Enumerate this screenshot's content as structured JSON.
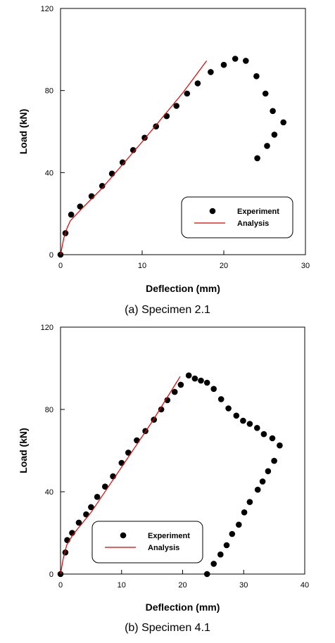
{
  "chart_data": [
    {
      "type": "scatter",
      "caption": "(a)  Specimen  2.1",
      "xlabel": "Deflection (mm)",
      "ylabel": "Load (kN)",
      "xlim": [
        0,
        30
      ],
      "ylim": [
        0,
        120
      ],
      "xticks": [
        "0",
        "10",
        "20",
        "30"
      ],
      "yticks": [
        "0",
        "40",
        "80",
        "120"
      ],
      "grid": false,
      "legend_position": "bottom-right",
      "series": [
        {
          "name": "Experiment",
          "kind": "markers",
          "color": "#000000",
          "points": [
            [
              0,
              0
            ],
            [
              0.6,
              10.5
            ],
            [
              1.3,
              19.5
            ],
            [
              2.4,
              23.5
            ],
            [
              3.8,
              28.5
            ],
            [
              5.1,
              33.5
            ],
            [
              6.3,
              39.5
            ],
            [
              7.6,
              45
            ],
            [
              8.9,
              51
            ],
            [
              10.3,
              57
            ],
            [
              11.7,
              62.5
            ],
            [
              13.0,
              67.5
            ],
            [
              14.2,
              72.5
            ],
            [
              15.5,
              78.5
            ],
            [
              16.8,
              83.5
            ],
            [
              18.4,
              89
            ],
            [
              20.0,
              92.5
            ],
            [
              21.4,
              95.5
            ],
            [
              22.7,
              94.5
            ],
            [
              24.0,
              87
            ],
            [
              25.1,
              78.5
            ],
            [
              26.0,
              70
            ],
            [
              27.3,
              64.5
            ],
            [
              26.2,
              58.5
            ],
            [
              25.3,
              53
            ],
            [
              24.1,
              47
            ]
          ]
        },
        {
          "name": "Analysis",
          "kind": "line",
          "color": "#e00000",
          "points": [
            [
              0,
              0
            ],
            [
              0.4,
              8
            ],
            [
              0.8,
              13
            ],
            [
              1.2,
              16.5
            ],
            [
              2.5,
              22
            ],
            [
              5,
              32
            ],
            [
              10,
              55
            ],
            [
              15,
              79
            ],
            [
              17.9,
              94.5
            ]
          ]
        }
      ]
    },
    {
      "type": "scatter",
      "caption": "(b)  Specimen  4.1",
      "xlabel": "Deflection (mm)",
      "ylabel": "Load (kN)",
      "xlim": [
        0,
        40
      ],
      "ylim": [
        0,
        120
      ],
      "xticks": [
        "0",
        "10",
        "20",
        "30",
        "40"
      ],
      "yticks": [
        "0",
        "40",
        "80",
        "120"
      ],
      "grid": false,
      "legend_position": "bottom-left",
      "series": [
        {
          "name": "Experiment",
          "kind": "markers",
          "color": "#000000",
          "points": [
            [
              0,
              0
            ],
            [
              0.8,
              10.5
            ],
            [
              1.1,
              16.5
            ],
            [
              1.9,
              20
            ],
            [
              3.0,
              25
            ],
            [
              4.2,
              29
            ],
            [
              5.0,
              32.5
            ],
            [
              6.0,
              37.5
            ],
            [
              7.3,
              42.5
            ],
            [
              8.6,
              47.5
            ],
            [
              10.0,
              54
            ],
            [
              11.1,
              59
            ],
            [
              12.5,
              65
            ],
            [
              13.9,
              69.5
            ],
            [
              15.3,
              75
            ],
            [
              16.5,
              80
            ],
            [
              17.5,
              84.5
            ],
            [
              18.7,
              88.5
            ],
            [
              19.7,
              92
            ],
            [
              21.0,
              96.5
            ],
            [
              22.0,
              95
            ],
            [
              23.0,
              94
            ],
            [
              24.0,
              93
            ],
            [
              25.1,
              90
            ],
            [
              26.3,
              85
            ],
            [
              27.5,
              80.5
            ],
            [
              28.8,
              77
            ],
            [
              29.9,
              74.5
            ],
            [
              31.0,
              73
            ],
            [
              32.2,
              71
            ],
            [
              33.3,
              68
            ],
            [
              34.7,
              66
            ],
            [
              35.9,
              62.5
            ],
            [
              35.0,
              55
            ],
            [
              34.0,
              50
            ],
            [
              33.1,
              45
            ],
            [
              32.3,
              41
            ],
            [
              31.0,
              35
            ],
            [
              30.1,
              30
            ],
            [
              29.2,
              24
            ],
            [
              28.1,
              19.5
            ],
            [
              27.2,
              14
            ],
            [
              26.2,
              9.5
            ],
            [
              25.1,
              5
            ],
            [
              24.0,
              0
            ]
          ]
        },
        {
          "name": "Analysis",
          "kind": "line",
          "color": "#e00000",
          "points": [
            [
              0,
              0
            ],
            [
              0.4,
              7
            ],
            [
              1,
              14
            ],
            [
              2,
              19
            ],
            [
              5,
              30
            ],
            [
              10,
              52
            ],
            [
              15,
              74
            ],
            [
              19.6,
              96
            ]
          ]
        }
      ]
    }
  ]
}
